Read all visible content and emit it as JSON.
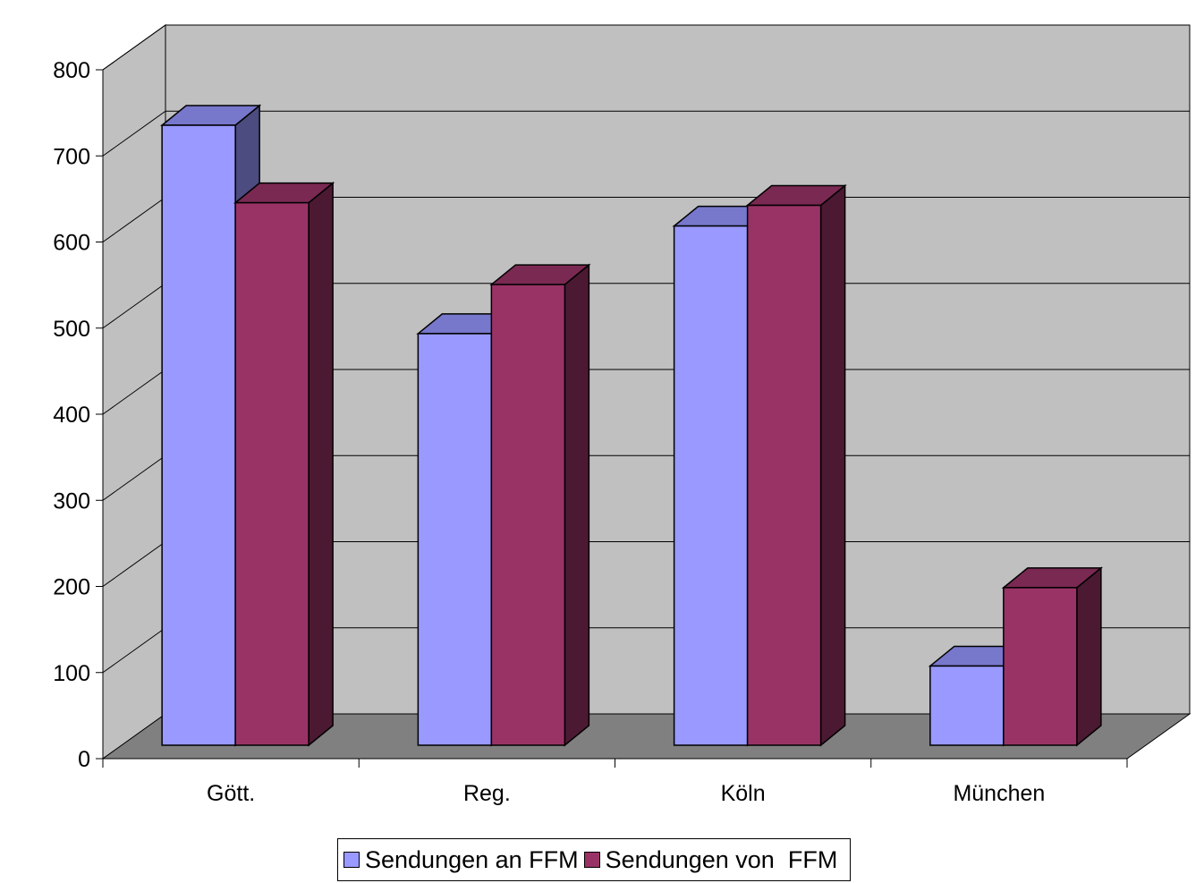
{
  "chart_data": {
    "type": "bar",
    "style": "3d-clustered-column",
    "title": "",
    "xlabel": "",
    "ylabel": "",
    "categories": [
      "Gött.",
      "Reg.",
      "Köln",
      "München"
    ],
    "series": [
      {
        "name": "Sendungen an FFM",
        "values": [
          720,
          478,
          603,
          92
        ],
        "color": "#9999FF",
        "side_color": "#4C4C80",
        "top_color": "#7777CC"
      },
      {
        "name": "Sendungen von  FFM",
        "values": [
          630,
          535,
          627,
          183
        ],
        "color": "#993366",
        "side_color": "#4C1933",
        "top_color": "#7A2952"
      }
    ],
    "ylim": [
      0,
      800
    ],
    "yticks": [
      "0",
      "100",
      "200",
      "300",
      "400",
      "500",
      "600",
      "700",
      "800"
    ],
    "grid": true,
    "legend_position": "bottom",
    "colors": {
      "back_wall": "#C0C0C0",
      "floor": "#808080"
    }
  }
}
